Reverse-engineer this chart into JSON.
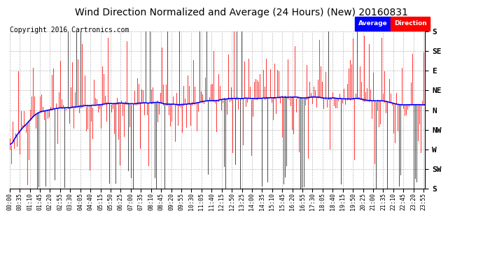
{
  "title": "Wind Direction Normalized and Average (24 Hours) (New) 20160831",
  "copyright": "Copyright 2016 Cartronics.com",
  "legend_labels": [
    "Average",
    "Direction"
  ],
  "legend_colors": [
    "#0000ff",
    "#ff0000"
  ],
  "ytick_labels": [
    "S",
    "SE",
    "E",
    "NE",
    "N",
    "NW",
    "W",
    "SW",
    "S"
  ],
  "ytick_values": [
    0,
    45,
    90,
    135,
    180,
    225,
    270,
    315,
    360
  ],
  "background_color": "#ffffff",
  "grid_color": "#aaaaaa",
  "title_fontsize": 10,
  "copyright_fontsize": 7,
  "tick_fontsize": 7,
  "num_points": 288,
  "avg_line_color": "#0000ff",
  "raw_line_color": "#ff0000",
  "dark_spike_color": "#222222"
}
